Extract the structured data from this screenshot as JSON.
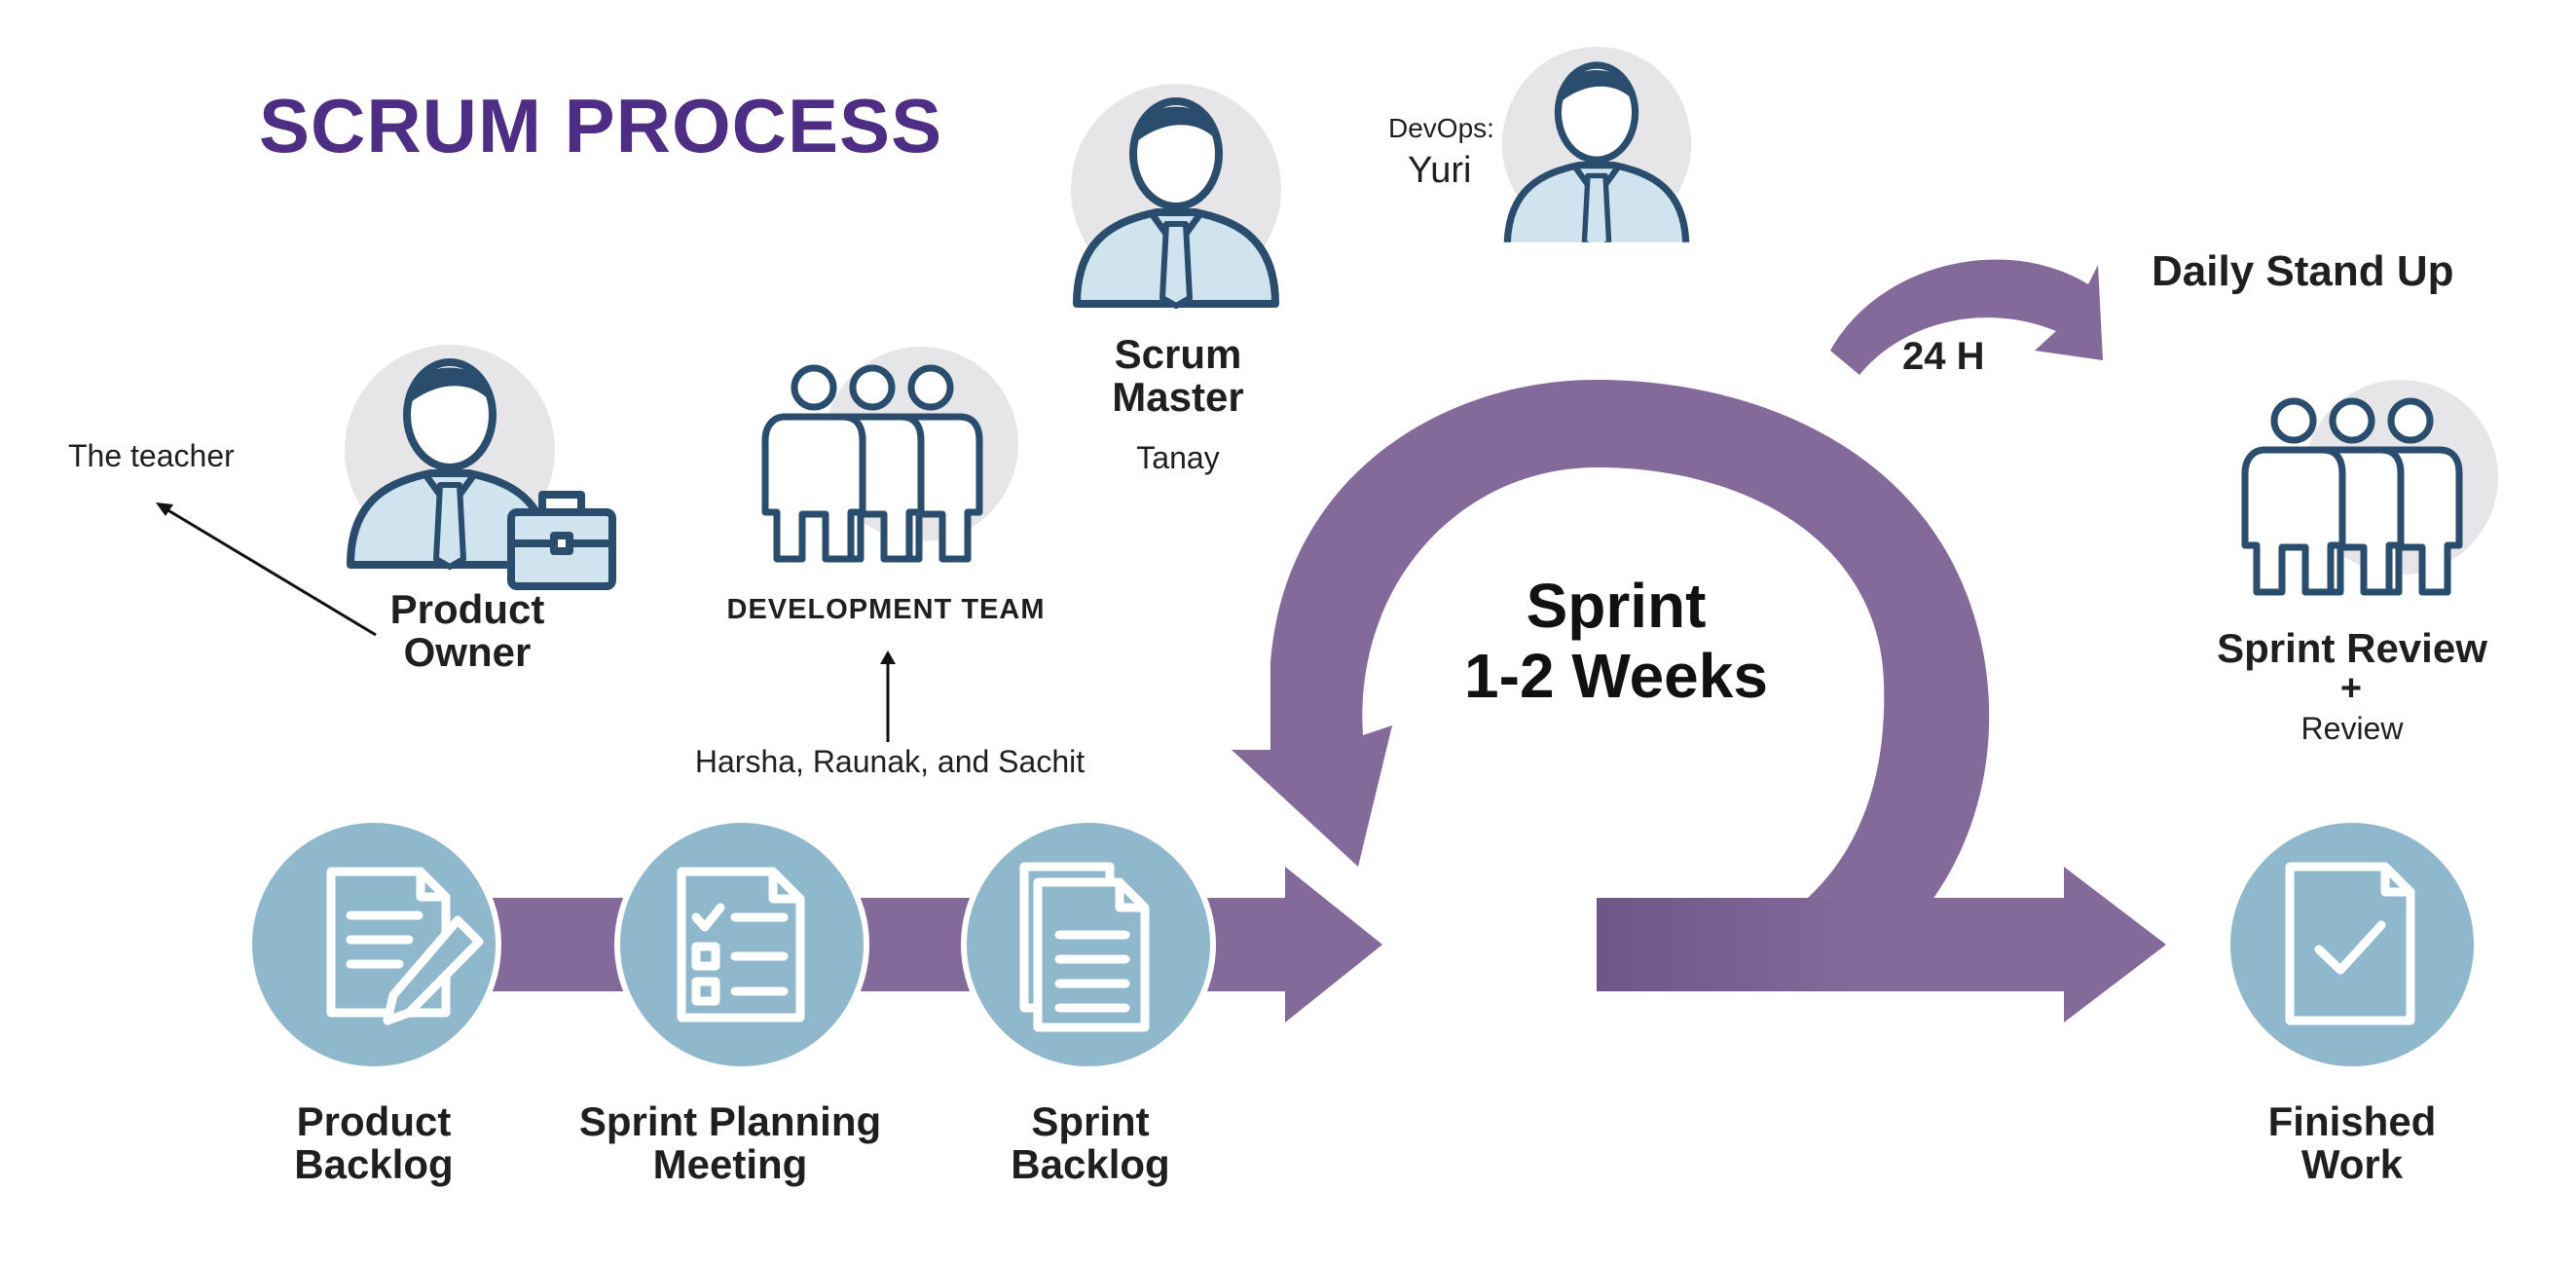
{
  "title": "SCRUM PROCESS",
  "roles": {
    "product_owner": {
      "label": "Product Owner",
      "note": "The teacher"
    },
    "development_team": {
      "label": "DEVELOPMENT TEAM",
      "note": "Harsha, Raunak, and Sachit"
    },
    "scrum_master": {
      "label": "Scrum Master",
      "note": "Tanay"
    },
    "devops": {
      "label": "DevOps:",
      "name": "Yuri"
    }
  },
  "sprint": {
    "title": "Sprint",
    "duration": "1-2 Weeks"
  },
  "daily_standup": {
    "label": "Daily Stand Up",
    "interval": "24 H"
  },
  "sprint_review": {
    "label": "Sprint Review",
    "plus": "+",
    "sub": "Review"
  },
  "steps": [
    {
      "label": "Product Backlog",
      "icon": "document-edit-icon"
    },
    {
      "label": "Sprint Planning Meeting",
      "icon": "checklist-icon"
    },
    {
      "label": "Sprint Backlog",
      "icon": "documents-stack-icon"
    },
    {
      "label": "Finished Work",
      "icon": "document-check-icon"
    }
  ],
  "colors": {
    "title": "#4e2d84",
    "arrow_purple": "#84699b",
    "step_circle": "#8fb8cc",
    "person_fill": "#cfe4ef",
    "person_line": "#2a4d6d",
    "halo": "#e6e6e9"
  }
}
